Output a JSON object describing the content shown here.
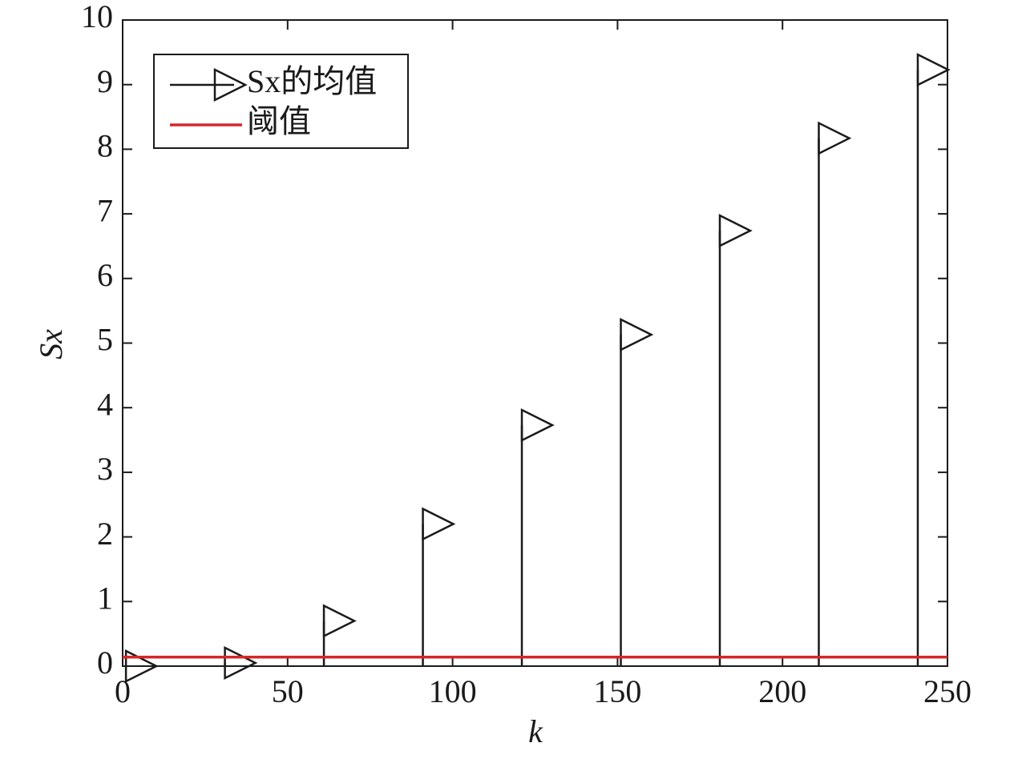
{
  "chart_data": {
    "type": "stem",
    "xlabel": "k",
    "ylabel": "Sx",
    "x": [
      1,
      31,
      61,
      91,
      121,
      151,
      181,
      211,
      241
    ],
    "series": [
      {
        "name": "Sx的均值",
        "color": "#1a1a1a",
        "values": [
          0,
          0.05,
          0.7,
          2.2,
          3.73,
          5.13,
          6.74,
          8.17,
          9.23
        ]
      }
    ],
    "threshold": {
      "name": "阈值",
      "color": "#d62728",
      "value": 0.14
    },
    "xlim": [
      0,
      250
    ],
    "xticks": [
      0,
      50,
      100,
      150,
      200,
      250
    ],
    "ylim": [
      0,
      10
    ],
    "yticks": [
      0,
      1,
      2,
      3,
      4,
      5,
      6,
      7,
      8,
      9,
      10
    ],
    "legend": "upper left"
  }
}
